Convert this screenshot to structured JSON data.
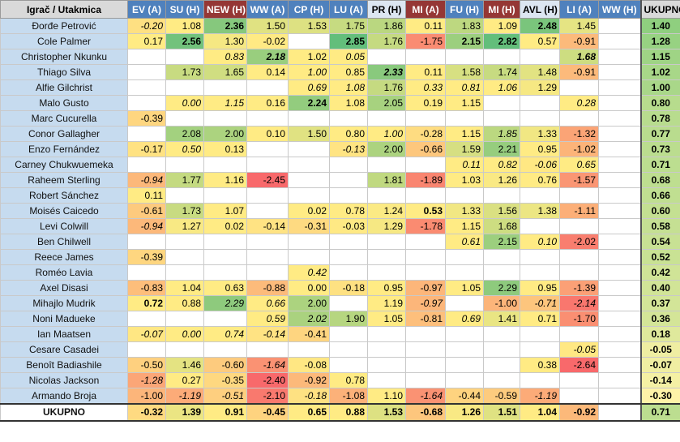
{
  "table": {
    "corner_label": "Igrač / Utakmica",
    "total_label": "UKUPNO",
    "footer_label": "UKUPNO",
    "columns": [
      {
        "label": "EV (A)",
        "bg": "#4f81bd",
        "fg": "#ffffff"
      },
      {
        "label": "SU (H)",
        "bg": "#4f81bd",
        "fg": "#ffffff"
      },
      {
        "label": "NEW (H)",
        "bg": "#953735",
        "fg": "#ffffff"
      },
      {
        "label": "WW (A)",
        "bg": "#4f81bd",
        "fg": "#ffffff"
      },
      {
        "label": "CP (H)",
        "bg": "#4f81bd",
        "fg": "#ffffff"
      },
      {
        "label": "LU (A)",
        "bg": "#4f81bd",
        "fg": "#ffffff"
      },
      {
        "label": "PR (H)",
        "bg": "#dce6f1",
        "fg": "#000000"
      },
      {
        "label": "MI (A)",
        "bg": "#953735",
        "fg": "#ffffff"
      },
      {
        "label": "FU (H)",
        "bg": "#4f81bd",
        "fg": "#ffffff"
      },
      {
        "label": "MI (H)",
        "bg": "#953735",
        "fg": "#ffffff"
      },
      {
        "label": "AVL (H)",
        "bg": "#dce6f1",
        "fg": "#000000"
      },
      {
        "label": "LI (A)",
        "bg": "#4f81bd",
        "fg": "#ffffff"
      },
      {
        "label": "WW (H)",
        "bg": "#4f81bd",
        "fg": "#ffffff"
      }
    ],
    "rows": [
      {
        "player": "Đorđe Petrović",
        "total": "1.40",
        "cells": [
          "i:-0.20",
          "1.08",
          "b:2.36",
          "1.50",
          "1.53",
          "1.75",
          "1.86",
          "0.11",
          "1.83",
          "1.09",
          "b:2.48",
          "1.45",
          ""
        ]
      },
      {
        "player": "Cole Palmer",
        "total": "1.28",
        "cells": [
          "0.17",
          "b:2.56",
          "1.30",
          "-0.02",
          "",
          "b:2.85",
          "1.76",
          "-1.75",
          "b:2.15",
          "b:2.82",
          "0.57",
          "-0.91",
          ""
        ]
      },
      {
        "player": "Christopher Nkunku",
        "total": "1.15",
        "cells": [
          "",
          "",
          "i:0.83",
          "bi:2.18",
          "1.02",
          "i:0.05",
          "",
          "",
          "",
          "",
          "",
          "bi:1.68",
          ""
        ]
      },
      {
        "player": "Thiago Silva",
        "total": "1.02",
        "cells": [
          "",
          "1.73",
          "1.65",
          "0.14",
          "i:1.00",
          "0.85",
          "bi:2.33",
          "0.11",
          "1.58",
          "1.74",
          "1.48",
          "-0.91",
          ""
        ]
      },
      {
        "player": "Alfie Gilchrist",
        "total": "1.00",
        "cells": [
          "",
          "",
          "",
          "",
          "i:0.69",
          "i:1.08",
          "1.76",
          "i:0.33",
          "i:0.81",
          "i:1.06",
          "1.29",
          "",
          ""
        ]
      },
      {
        "player": "Malo Gusto",
        "total": "0.80",
        "cells": [
          "",
          "i:0.00",
          "i:1.15",
          "0.16",
          "b:2.24",
          "1.08",
          "2.05",
          "0.19",
          "1.15",
          "",
          "",
          "i:0.28",
          ""
        ]
      },
      {
        "player": "Marc Cucurella",
        "total": "0.78",
        "cells": [
          "-0.39",
          "",
          "",
          "",
          "",
          "",
          "",
          "",
          "",
          "",
          "",
          "",
          ""
        ]
      },
      {
        "player": "Conor Gallagher",
        "total": "0.77",
        "cells": [
          "",
          "2.08",
          "2.00",
          "0.10",
          "1.50",
          "0.80",
          "i:1.00",
          "-0.28",
          "1.15",
          "i:1.85",
          "1.33",
          "-1.32",
          ""
        ]
      },
      {
        "player": "Enzo Fernández",
        "total": "0.73",
        "cells": [
          "-0.17",
          "i:0.50",
          "0.13",
          "",
          "",
          "i:-0.13",
          "2.00",
          "-0.66",
          "1.59",
          "2.21",
          "0.95",
          "-1.02",
          ""
        ]
      },
      {
        "player": "Carney Chukwuemeka",
        "total": "0.71",
        "cells": [
          "",
          "",
          "",
          "",
          "",
          "",
          "",
          "",
          "i:0.11",
          "i:0.82",
          "i:-0.06",
          "i:0.65",
          ""
        ]
      },
      {
        "player": "Raheem Sterling",
        "total": "0.68",
        "cells": [
          "i:-0.94",
          "1.77",
          "1.16",
          "-2.45",
          "",
          "",
          "1.81",
          "-1.89",
          "1.03",
          "1.26",
          "0.76",
          "-1.57",
          ""
        ]
      },
      {
        "player": "Robert Sánchez",
        "total": "0.66",
        "cells": [
          "0.11",
          "",
          "",
          "",
          "",
          "",
          "",
          "",
          "",
          "",
          "",
          "",
          ""
        ]
      },
      {
        "player": "Moisés Caicedo",
        "total": "0.60",
        "cells": [
          "-0.61",
          "1.73",
          "1.07",
          "",
          "0.02",
          "0.78",
          "1.24",
          "b:0.53",
          "1.33",
          "1.56",
          "1.38",
          "-1.11",
          ""
        ]
      },
      {
        "player": "Levi Colwill",
        "total": "0.58",
        "cells": [
          "i:-0.94",
          "1.27",
          "0.02",
          "-0.14",
          "-0.31",
          "-0.03",
          "1.29",
          "-1.78",
          "1.15",
          "1.68",
          "",
          "",
          ""
        ]
      },
      {
        "player": "Ben Chilwell",
        "total": "0.54",
        "cells": [
          "",
          "",
          "",
          "",
          "",
          "",
          "",
          "",
          "i:0.61",
          "2.15",
          "i:0.10",
          "-2.02",
          ""
        ]
      },
      {
        "player": "Reece James",
        "total": "0.52",
        "cells": [
          "-0.39",
          "",
          "",
          "",
          "",
          "",
          "",
          "",
          "",
          "",
          "",
          "",
          ""
        ]
      },
      {
        "player": "Roméo Lavia",
        "total": "0.42",
        "cells": [
          "",
          "",
          "",
          "",
          "i:0.42",
          "",
          "",
          "",
          "",
          "",
          "",
          "",
          ""
        ]
      },
      {
        "player": "Axel Disasi",
        "total": "0.40",
        "cells": [
          "-0.83",
          "1.04",
          "0.63",
          "-0.88",
          "0.00",
          "-0.18",
          "0.95",
          "-0.97",
          "1.05",
          "2.29",
          "0.95",
          "-1.39",
          ""
        ]
      },
      {
        "player": "Mihajlo Mudrik",
        "total": "0.37",
        "cells": [
          "b:0.72",
          "0.88",
          "i:2.29",
          "i:0.66",
          "2.00",
          "",
          "1.19",
          "i:-0.97",
          "",
          "-1.00",
          "i:-0.71",
          "i:-2.14",
          ""
        ]
      },
      {
        "player": "Noni Madueke",
        "total": "0.36",
        "cells": [
          "",
          "",
          "",
          "i:0.59",
          "i:2.02",
          "1.90",
          "1.05",
          "-0.81",
          "i:0.69",
          "1.41",
          "0.71",
          "-1.70",
          ""
        ]
      },
      {
        "player": "Ian Maatsen",
        "total": "0.18",
        "cells": [
          "i:-0.07",
          "i:0.00",
          "i:0.74",
          "i:-0.14",
          "-0.41",
          "",
          "",
          "",
          "",
          "",
          "",
          "",
          ""
        ]
      },
      {
        "player": "Cesare Casadei",
        "total": "-0.05",
        "cells": [
          "",
          "",
          "",
          "",
          "",
          "",
          "",
          "",
          "",
          "",
          "",
          "i:-0.05",
          ""
        ]
      },
      {
        "player": "Benoît Badiashile",
        "total": "-0.07",
        "cells": [
          "-0.50",
          "1.46",
          "-0.60",
          "i:-1.64",
          "-0.08",
          "",
          "",
          "",
          "",
          "",
          "0.38",
          "-2.64",
          ""
        ]
      },
      {
        "player": "Nicolas Jackson",
        "total": "-0.14",
        "cells": [
          "i:-1.28",
          "0.27",
          "-0.35",
          "-2.40",
          "-0.92",
          "0.78",
          "",
          "",
          "",
          "",
          "",
          "",
          ""
        ]
      },
      {
        "player": "Armando Broja",
        "total": "-0.30",
        "cells": [
          "-1.00",
          "i:-1.19",
          "i:-0.51",
          "-2.10",
          "i:-0.18",
          "-1.08",
          "1.10",
          "i:-1.64",
          "-0.44",
          "-0.59",
          "i:-1.19",
          "",
          ""
        ]
      }
    ],
    "footer": {
      "cells": [
        "-0.32",
        "1.39",
        "0.91",
        "-0.45",
        "0.65",
        "0.88",
        "1.53",
        "-0.68",
        "1.26",
        "1.51",
        "1.04",
        "-0.92",
        ""
      ],
      "total": "0.71"
    },
    "colors": {
      "green_dark": "#63be7b",
      "yellow": "#ffeb84",
      "red": "#f8696b",
      "player_name_bg": "#c6dbef",
      "total_col_bg": "#c9e69b"
    }
  }
}
